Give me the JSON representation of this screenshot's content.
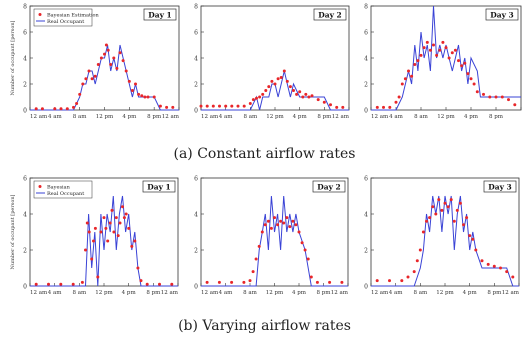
{
  "captions": {
    "a": "(a) Constant airflow rates",
    "b": "(b) Varying airflow rates"
  },
  "colors": {
    "estimation": "#e8262a",
    "occupant": "#3a43d6",
    "axis": "#333333"
  },
  "chart_data": [
    {
      "type": "line",
      "row": "a",
      "title": "Day 1",
      "ylabel": "Number of occupant [person]",
      "xlabel": "",
      "ylim": [
        0,
        8
      ],
      "y_ticks": [
        0,
        2,
        4,
        6,
        8
      ],
      "x_ticks": [
        "12 am",
        "4 am",
        "8 am",
        "12 pm",
        "4 pm",
        "8 pm",
        "12 am"
      ],
      "legend": {
        "placement": "top-left",
        "entries": [
          "Bayesian Estimation",
          "Real Occupant"
        ]
      },
      "series": [
        {
          "name": "Real Occupant",
          "style": "line",
          "x": [
            0,
            3,
            6,
            7,
            8,
            8.5,
            9,
            9.5,
            10,
            10.5,
            11,
            11.5,
            12,
            12.5,
            13,
            13.5,
            14,
            14.5,
            15,
            15.5,
            16,
            16.5,
            17,
            17.5,
            18,
            19,
            20,
            21,
            22,
            23,
            24
          ],
          "y": [
            0,
            0,
            0,
            0,
            1,
            2,
            2,
            3,
            3,
            2,
            3,
            4,
            4,
            5,
            3,
            4,
            3,
            5,
            4,
            3,
            2,
            1,
            2,
            1,
            1,
            1,
            1,
            0,
            0,
            0,
            0
          ]
        },
        {
          "name": "Bayesian Estimation",
          "style": "points",
          "x": [
            1,
            2,
            4,
            5,
            6,
            7,
            7.5,
            8,
            8.5,
            9,
            9.5,
            10,
            10.5,
            11,
            11.5,
            12,
            12.3,
            12.6,
            13,
            13.5,
            14,
            14.5,
            15,
            15.5,
            16,
            16.5,
            17,
            17.5,
            18,
            18.5,
            19,
            20,
            21,
            22,
            23
          ],
          "y": [
            0.1,
            0.1,
            0.1,
            0.1,
            0.1,
            0.2,
            0.5,
            1.2,
            2,
            2.4,
            3,
            2.4,
            2.6,
            3.5,
            4,
            4.3,
            5,
            4.6,
            3.5,
            4,
            3.2,
            4.4,
            3.8,
            3,
            2.2,
            1.5,
            2,
            1.2,
            1.1,
            1,
            1,
            1,
            0.3,
            0.2,
            0.2
          ]
        }
      ]
    },
    {
      "type": "line",
      "row": "a",
      "title": "Day 2",
      "ylim": [
        0,
        8
      ],
      "y_ticks": [
        0,
        2,
        4,
        6,
        8
      ],
      "x_ticks": [
        "12 am",
        "4 am",
        "8 am",
        "12 pm",
        "4 pm",
        "8 pm",
        "12 am"
      ],
      "series": [
        {
          "name": "Real Occupant",
          "style": "line",
          "x": [
            0,
            8,
            9,
            9.5,
            10,
            11,
            11.5,
            12,
            12.5,
            13,
            13.5,
            14,
            14.5,
            15,
            16,
            17,
            18,
            19,
            20,
            21,
            22,
            24
          ],
          "y": [
            0,
            0,
            1,
            0,
            1,
            1,
            2,
            2,
            1,
            2,
            3,
            2,
            1,
            2,
            1,
            1,
            1,
            1,
            1,
            0,
            0,
            0
          ]
        },
        {
          "name": "Bayesian Estimation",
          "style": "points",
          "x": [
            0,
            1,
            2,
            3,
            4,
            5,
            6,
            7,
            8,
            8.5,
            9,
            9.5,
            10,
            10.5,
            11,
            11.5,
            12,
            12.5,
            13,
            13.5,
            14,
            14.5,
            15,
            15.5,
            16,
            16.5,
            17,
            17.5,
            18,
            19,
            20,
            21,
            22,
            23
          ],
          "y": [
            0.3,
            0.3,
            0.3,
            0.3,
            0.3,
            0.3,
            0.3,
            0.3,
            0.5,
            0.8,
            0.9,
            1,
            1.2,
            1.5,
            1.8,
            2.2,
            2,
            2.4,
            2.5,
            3,
            2.2,
            1.8,
            1.5,
            1.2,
            1.4,
            1,
            1.2,
            1,
            1.1,
            0.8,
            0.6,
            0.4,
            0.2,
            0.2
          ]
        }
      ]
    },
    {
      "type": "line",
      "row": "a",
      "title": "Day 3",
      "ylim": [
        0,
        8
      ],
      "y_ticks": [
        0,
        2,
        4,
        6,
        8
      ],
      "x_ticks": [
        "12 am",
        "4 am",
        "8 am",
        "12 pm",
        "4 pm",
        "8 pm",
        ""
      ],
      "series": [
        {
          "name": "Real Occupant",
          "style": "line",
          "x": [
            0,
            4,
            5,
            6,
            6.5,
            7,
            7.5,
            8,
            8.5,
            9,
            9.5,
            10,
            10.5,
            11,
            11.5,
            12,
            12.5,
            13,
            13.5,
            14,
            14.5,
            15,
            15.5,
            16,
            17,
            17.5,
            18,
            19,
            20,
            21,
            22,
            23,
            24
          ],
          "y": [
            0,
            0,
            1,
            3,
            2,
            5,
            3,
            6,
            4,
            5,
            3,
            8,
            4,
            5,
            4,
            5,
            4,
            3,
            4,
            5,
            3,
            4,
            2,
            4,
            3,
            1,
            1,
            1,
            1,
            1,
            1,
            1,
            1
          ]
        },
        {
          "name": "Bayesian Estimation",
          "style": "points",
          "x": [
            1,
            2,
            3,
            4,
            4.5,
            5,
            5.5,
            6,
            6.5,
            7,
            7.5,
            8,
            8.5,
            9,
            9.5,
            10,
            10.5,
            11,
            11.5,
            12,
            12.5,
            13,
            13.5,
            14,
            14.5,
            15,
            15.5,
            16,
            16.5,
            17,
            18,
            19,
            20,
            21,
            22,
            23
          ],
          "y": [
            0.2,
            0.2,
            0.2,
            0.6,
            1,
            2,
            2.4,
            3,
            2.6,
            3.5,
            3.8,
            4.2,
            4.8,
            5.2,
            4.6,
            5,
            4.2,
            4.6,
            5.2,
            4.8,
            4,
            4.4,
            4.6,
            3.8,
            3.4,
            3.6,
            2.8,
            2.4,
            2,
            1.4,
            1.2,
            1,
            1,
            1,
            0.8,
            0.4
          ]
        }
      ]
    },
    {
      "type": "line",
      "row": "b",
      "title": "Day 1",
      "ylabel": "Number of occupant [person]",
      "xlabel": "",
      "ylim": [
        0,
        6
      ],
      "y_ticks": [
        0,
        2,
        4,
        6
      ],
      "x_ticks": [
        "12 am",
        "4 am",
        "8 am",
        "12 pm",
        "4 pm",
        "8 pm",
        "12 am"
      ],
      "legend": {
        "placement": "top-left",
        "entries": [
          "Bayesian",
          "Real Occupant"
        ]
      },
      "series": [
        {
          "name": "Real Occupant",
          "style": "line",
          "x": [
            0,
            9,
            9.5,
            10,
            10.5,
            11,
            11.5,
            12,
            12.5,
            13,
            13.5,
            14,
            14.5,
            15,
            15.5,
            16,
            16.5,
            17,
            17.5,
            18,
            19,
            24
          ],
          "y": [
            0,
            0,
            4,
            1,
            3,
            0,
            4,
            2,
            4,
            3,
            5,
            2,
            4,
            5,
            3,
            4,
            2,
            3,
            1,
            0,
            0,
            0
          ]
        },
        {
          "name": "Bayesian",
          "style": "points",
          "x": [
            1,
            3,
            5,
            7,
            8.5,
            9,
            9.3,
            9.6,
            10,
            10.3,
            10.6,
            11,
            11.5,
            12,
            12.3,
            12.6,
            13,
            13.3,
            13.6,
            14,
            14.3,
            14.6,
            15,
            15.3,
            15.6,
            16,
            16.5,
            17,
            17.5,
            18,
            19,
            21,
            23
          ],
          "y": [
            0.1,
            0.1,
            0.1,
            0.1,
            0.2,
            2,
            3.5,
            3,
            1.5,
            2.5,
            3.2,
            0.5,
            3,
            3.8,
            3.2,
            2.5,
            3.5,
            4.2,
            3,
            3.8,
            2.8,
            3.5,
            4.4,
            3.8,
            4,
            3.2,
            2.2,
            2.5,
            1,
            0.3,
            0.1,
            0.1,
            0.1
          ]
        }
      ]
    },
    {
      "type": "line",
      "row": "b",
      "title": "Day 2",
      "ylim": [
        0,
        6
      ],
      "y_ticks": [
        0,
        2,
        4,
        6
      ],
      "x_ticks": [
        "12 am",
        "4 am",
        "8 am",
        "12 pm",
        "4 pm",
        "8 pm",
        "12 am"
      ],
      "series": [
        {
          "name": "Real Occupant",
          "style": "line",
          "x": [
            0,
            9,
            9.5,
            10,
            10.5,
            11,
            11.5,
            12,
            12.5,
            13,
            13.5,
            14,
            14.5,
            15,
            15.5,
            16,
            17,
            18,
            19,
            24
          ],
          "y": [
            0,
            0,
            2,
            3,
            4,
            2,
            5,
            3,
            4,
            2,
            5,
            3,
            4,
            3,
            4,
            3,
            2,
            0,
            0,
            0
          ]
        },
        {
          "name": "Bayesian Estimation",
          "style": "points",
          "x": [
            1,
            3,
            5,
            7,
            8,
            8.5,
            9,
            9.5,
            10,
            10.5,
            11,
            11.5,
            12,
            12.5,
            13,
            13.5,
            14,
            14.5,
            15,
            15.5,
            16,
            16.5,
            17,
            17.5,
            18,
            19,
            21,
            23
          ],
          "y": [
            0.2,
            0.2,
            0.2,
            0.2,
            0.3,
            0.8,
            1.5,
            2.2,
            3,
            3.4,
            3.6,
            3.2,
            3.8,
            3.4,
            3.6,
            3.5,
            3.8,
            3.3,
            3.6,
            3.4,
            3,
            2.4,
            2,
            1.5,
            0.5,
            0.2,
            0.2,
            0.2
          ]
        }
      ]
    },
    {
      "type": "line",
      "row": "b",
      "title": "Day 3",
      "ylim": [
        0,
        6
      ],
      "y_ticks": [
        0,
        2,
        4,
        6
      ],
      "x_ticks": [
        "12 am",
        "4 am",
        "8 am",
        "12 pm",
        "4 pm",
        "8 pm",
        "12 am"
      ],
      "series": [
        {
          "name": "Real Occupant",
          "style": "line",
          "x": [
            0,
            7,
            8,
            8.5,
            9,
            9.5,
            10,
            10.5,
            11,
            11.5,
            12,
            12.5,
            13,
            13.5,
            14,
            14.5,
            15,
            15.5,
            16,
            16.5,
            17,
            18,
            19,
            20,
            21,
            22,
            23,
            24
          ],
          "y": [
            0,
            0,
            1,
            2,
            4,
            3,
            5,
            4,
            5,
            3,
            5,
            4,
            5,
            2,
            4,
            5,
            3,
            4,
            2,
            3,
            2,
            1,
            1,
            1,
            1,
            1,
            0,
            0
          ]
        },
        {
          "name": "Bayesian Estimation",
          "style": "points",
          "x": [
            1,
            3,
            5,
            6,
            7,
            7.5,
            8,
            8.5,
            9,
            9.5,
            10,
            10.5,
            11,
            11.5,
            12,
            12.5,
            13,
            13.5,
            14,
            14.5,
            15,
            15.5,
            16,
            16.5,
            17,
            18,
            19,
            20,
            21,
            22,
            23
          ],
          "y": [
            0.3,
            0.3,
            0.3,
            0.5,
            0.8,
            1.4,
            2,
            3,
            3.6,
            3.8,
            4.4,
            4,
            4.8,
            4.2,
            4.6,
            4.4,
            4.8,
            3.6,
            4.2,
            4.6,
            3.4,
            3.8,
            2.8,
            2.6,
            2,
            1.4,
            1.2,
            1.1,
            1,
            0.8,
            0.5
          ]
        }
      ]
    }
  ]
}
